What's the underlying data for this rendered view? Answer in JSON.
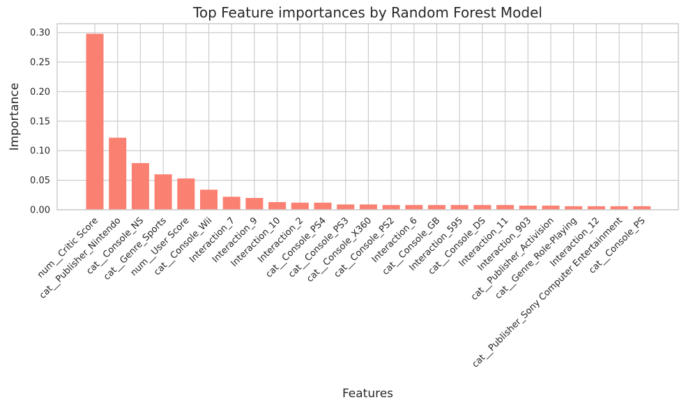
{
  "chart_data": {
    "type": "bar",
    "title": "Top Feature importances by Random Forest Model",
    "xlabel": "Features",
    "ylabel": "Importance",
    "ylim": [
      0,
      0.315
    ],
    "yticks": [
      "0.00",
      "0.05",
      "0.10",
      "0.15",
      "0.20",
      "0.25",
      "0.30"
    ],
    "grid": true,
    "bar_color": "#fa8072",
    "categories": [
      "num__Critic Score",
      "cat__Publisher_Nintendo",
      "cat__Console_NS",
      "cat__Genre_Sports",
      "num__User Score",
      "cat__Console_Wii",
      "Interaction_7",
      "Interaction_9",
      "Interaction_10",
      "Interaction_2",
      "cat__Console_PS4",
      "cat__Console_PS3",
      "cat__Console_X360",
      "cat__Console_PS2",
      "Interaction_6",
      "cat__Console_GB",
      "Interaction_595",
      "cat__Console_DS",
      "Interaction_11",
      "Interaction_903",
      "cat__Publisher_Activision",
      "cat__Genre_Role-Playing",
      "Interaction_12",
      "cat__Publisher_Sony Computer Entertainment",
      "cat__Console_PS"
    ],
    "values": [
      0.298,
      0.122,
      0.079,
      0.06,
      0.053,
      0.034,
      0.022,
      0.02,
      0.013,
      0.012,
      0.012,
      0.009,
      0.009,
      0.008,
      0.008,
      0.008,
      0.008,
      0.008,
      0.008,
      0.007,
      0.007,
      0.006,
      0.006,
      0.006,
      0.006
    ]
  }
}
